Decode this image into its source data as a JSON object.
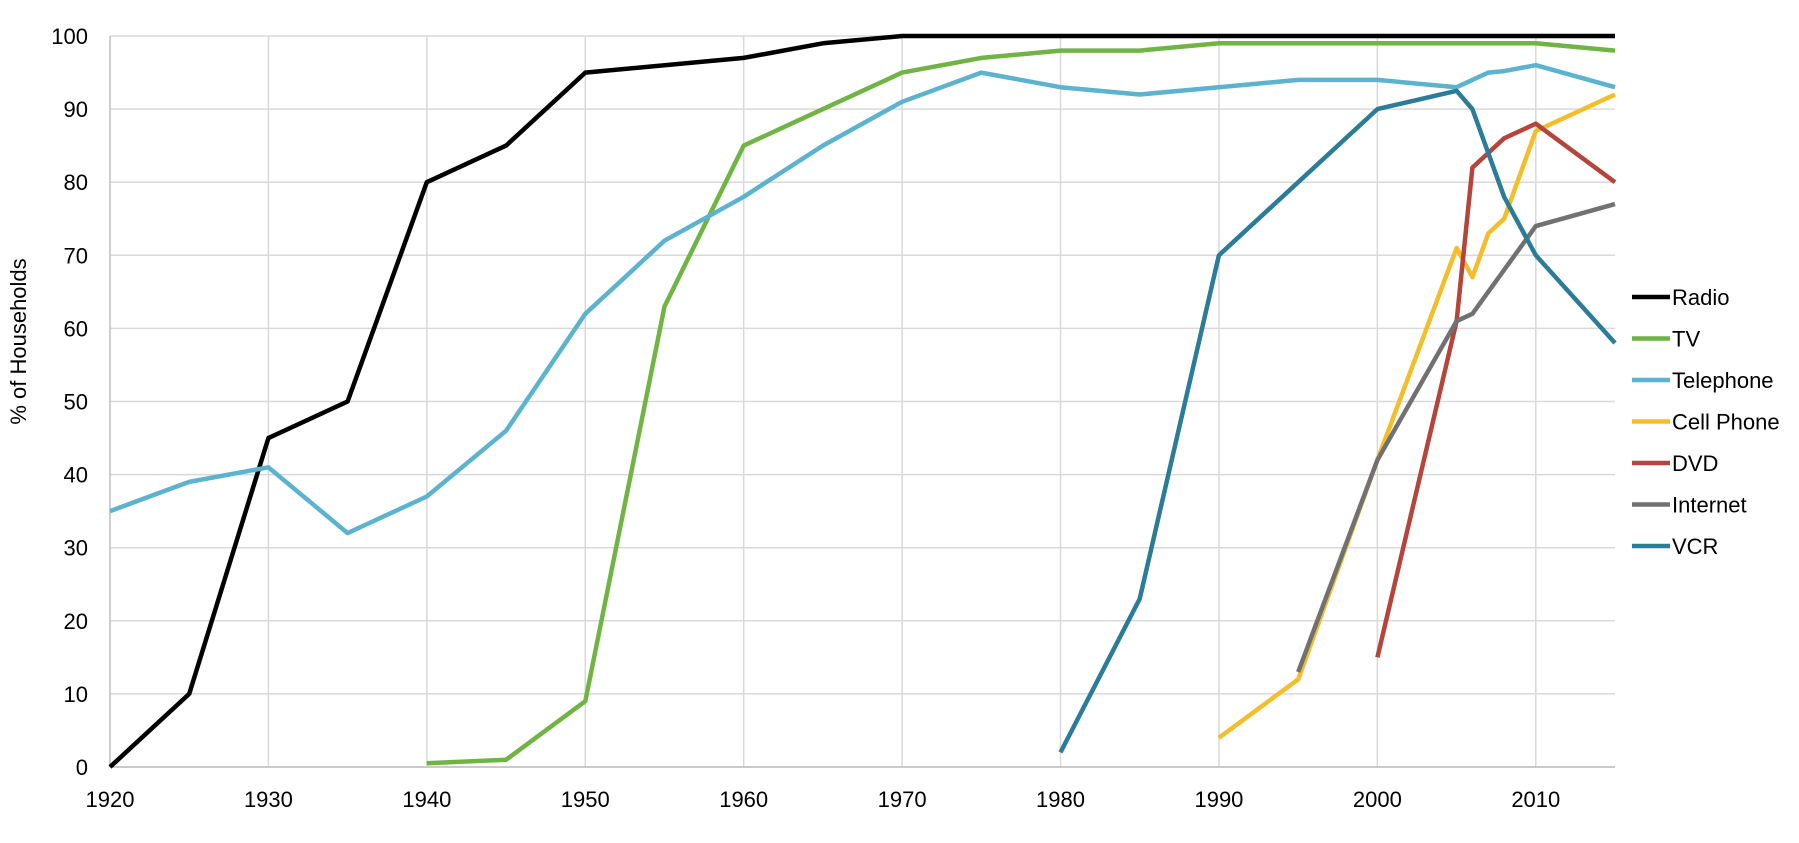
{
  "chart_data": {
    "type": "line",
    "title": "",
    "xlabel": "",
    "ylabel": "% of Households",
    "xlim": [
      1920,
      2015
    ],
    "ylim": [
      0,
      100
    ],
    "x_ticks": [
      "1920",
      "1930",
      "1940",
      "1950",
      "1960",
      "1970",
      "1980",
      "1990",
      "2000",
      "2010"
    ],
    "y_ticks": [
      "0",
      "10",
      "20",
      "30",
      "40",
      "50",
      "60",
      "70",
      "80",
      "90",
      "100"
    ],
    "grid": "vertical and horizontal",
    "legend_position": "right",
    "series": [
      {
        "name": "Radio",
        "color": "#000000",
        "points": [
          [
            1920,
            0
          ],
          [
            1925,
            10
          ],
          [
            1930,
            45
          ],
          [
            1935,
            50
          ],
          [
            1940,
            80
          ],
          [
            1945,
            85
          ],
          [
            1950,
            95
          ],
          [
            1960,
            97
          ],
          [
            1965,
            99
          ],
          [
            1970,
            100
          ],
          [
            2015,
            100
          ]
        ]
      },
      {
        "name": "TV",
        "color": "#70b443",
        "points": [
          [
            1940,
            0.5
          ],
          [
            1945,
            1
          ],
          [
            1950,
            9
          ],
          [
            1955,
            63
          ],
          [
            1960,
            85
          ],
          [
            1965,
            90
          ],
          [
            1970,
            95
          ],
          [
            1975,
            97
          ],
          [
            1980,
            98
          ],
          [
            1985,
            98
          ],
          [
            1990,
            99
          ],
          [
            2010,
            99
          ],
          [
            2015,
            98
          ]
        ]
      },
      {
        "name": "Telephone",
        "color": "#5bb3cf",
        "points": [
          [
            1920,
            35
          ],
          [
            1925,
            39
          ],
          [
            1930,
            41
          ],
          [
            1935,
            32
          ],
          [
            1940,
            37
          ],
          [
            1945,
            46
          ],
          [
            1950,
            62
          ],
          [
            1955,
            72
          ],
          [
            1960,
            78
          ],
          [
            1965,
            85
          ],
          [
            1970,
            91
          ],
          [
            1975,
            95
          ],
          [
            1980,
            93
          ],
          [
            1985,
            92
          ],
          [
            1990,
            93
          ],
          [
            1995,
            94
          ],
          [
            2000,
            94
          ],
          [
            2005,
            93
          ],
          [
            2007,
            95
          ],
          [
            2008,
            95.2
          ],
          [
            2010,
            96
          ],
          [
            2015,
            93
          ]
        ]
      },
      {
        "name": "Cell Phone",
        "color": "#f4bd2a",
        "points": [
          [
            1990,
            4
          ],
          [
            1995,
            12
          ],
          [
            2000,
            42
          ],
          [
            2005,
            71
          ],
          [
            2006,
            67
          ],
          [
            2007,
            73
          ],
          [
            2008,
            75
          ],
          [
            2010,
            87
          ],
          [
            2015,
            92
          ]
        ]
      },
      {
        "name": "DVD",
        "color": "#b5443a",
        "points": [
          [
            2000,
            15
          ],
          [
            2005,
            61
          ],
          [
            2006,
            82
          ],
          [
            2008,
            86
          ],
          [
            2010,
            88
          ],
          [
            2015,
            80
          ]
        ]
      },
      {
        "name": "Internet",
        "color": "#717171",
        "points": [
          [
            1995,
            13
          ],
          [
            2000,
            42
          ],
          [
            2005,
            61
          ],
          [
            2006,
            62
          ],
          [
            2010,
            74
          ],
          [
            2015,
            77
          ]
        ]
      },
      {
        "name": "VCR",
        "color": "#2a7c99",
        "points": [
          [
            1980,
            2
          ],
          [
            1985,
            23
          ],
          [
            1990,
            70
          ],
          [
            2000,
            90
          ],
          [
            2005,
            92.5
          ],
          [
            2006,
            90
          ],
          [
            2008,
            78
          ],
          [
            2010,
            70
          ],
          [
            2015,
            58
          ]
        ]
      }
    ]
  }
}
